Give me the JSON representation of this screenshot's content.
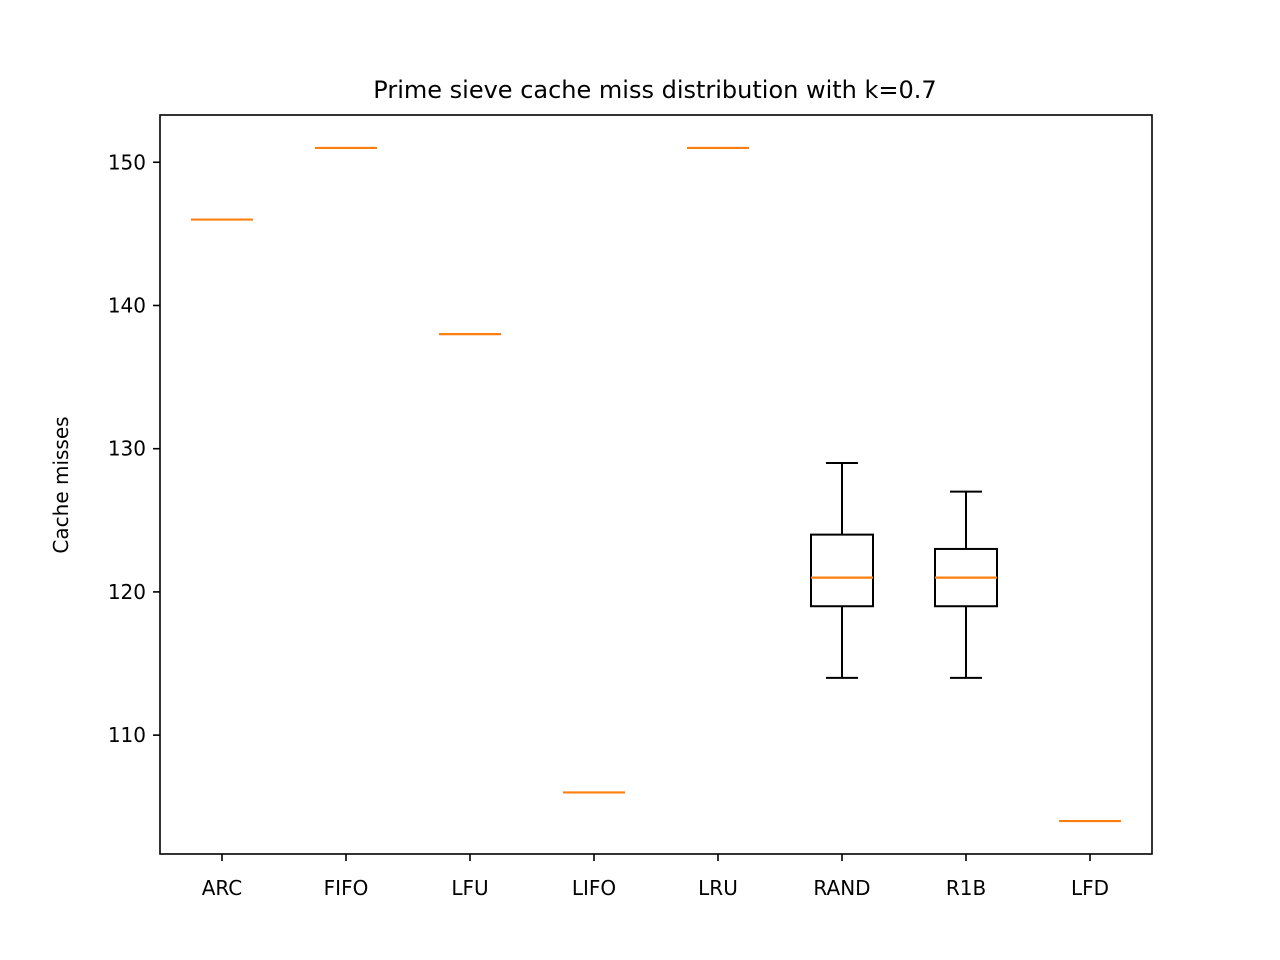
{
  "chart_data": {
    "type": "box",
    "title": "Prime sieve cache miss distribution with k=0.7",
    "xlabel": "",
    "ylabel": "Cache misses",
    "ylim": [
      101.7,
      153.3
    ],
    "yticks": [
      110,
      120,
      130,
      140,
      150
    ],
    "grid": false,
    "categories": [
      "ARC",
      "FIFO",
      "LFU",
      "LIFO",
      "LRU",
      "RAND",
      "R1B",
      "LFD"
    ],
    "boxes": [
      {
        "category": "ARC",
        "whisker_low": 146,
        "q1": 146,
        "median": 146,
        "q3": 146,
        "whisker_high": 146
      },
      {
        "category": "FIFO",
        "whisker_low": 151,
        "q1": 151,
        "median": 151,
        "q3": 151,
        "whisker_high": 151
      },
      {
        "category": "LFU",
        "whisker_low": 138,
        "q1": 138,
        "median": 138,
        "q3": 138,
        "whisker_high": 138
      },
      {
        "category": "LIFO",
        "whisker_low": 106,
        "q1": 106,
        "median": 106,
        "q3": 106,
        "whisker_high": 106
      },
      {
        "category": "LRU",
        "whisker_low": 151,
        "q1": 151,
        "median": 151,
        "q3": 151,
        "whisker_high": 151
      },
      {
        "category": "RAND",
        "whisker_low": 114,
        "q1": 119,
        "median": 121,
        "q3": 124,
        "whisker_high": 129
      },
      {
        "category": "R1B",
        "whisker_low": 114,
        "q1": 119,
        "median": 121,
        "q3": 123,
        "whisker_high": 127
      },
      {
        "category": "LFD",
        "whisker_low": 104,
        "q1": 104,
        "median": 104,
        "q3": 104,
        "whisker_high": 104
      }
    ],
    "colors": {
      "box": "#000000",
      "median": "#ff7f0e"
    }
  }
}
